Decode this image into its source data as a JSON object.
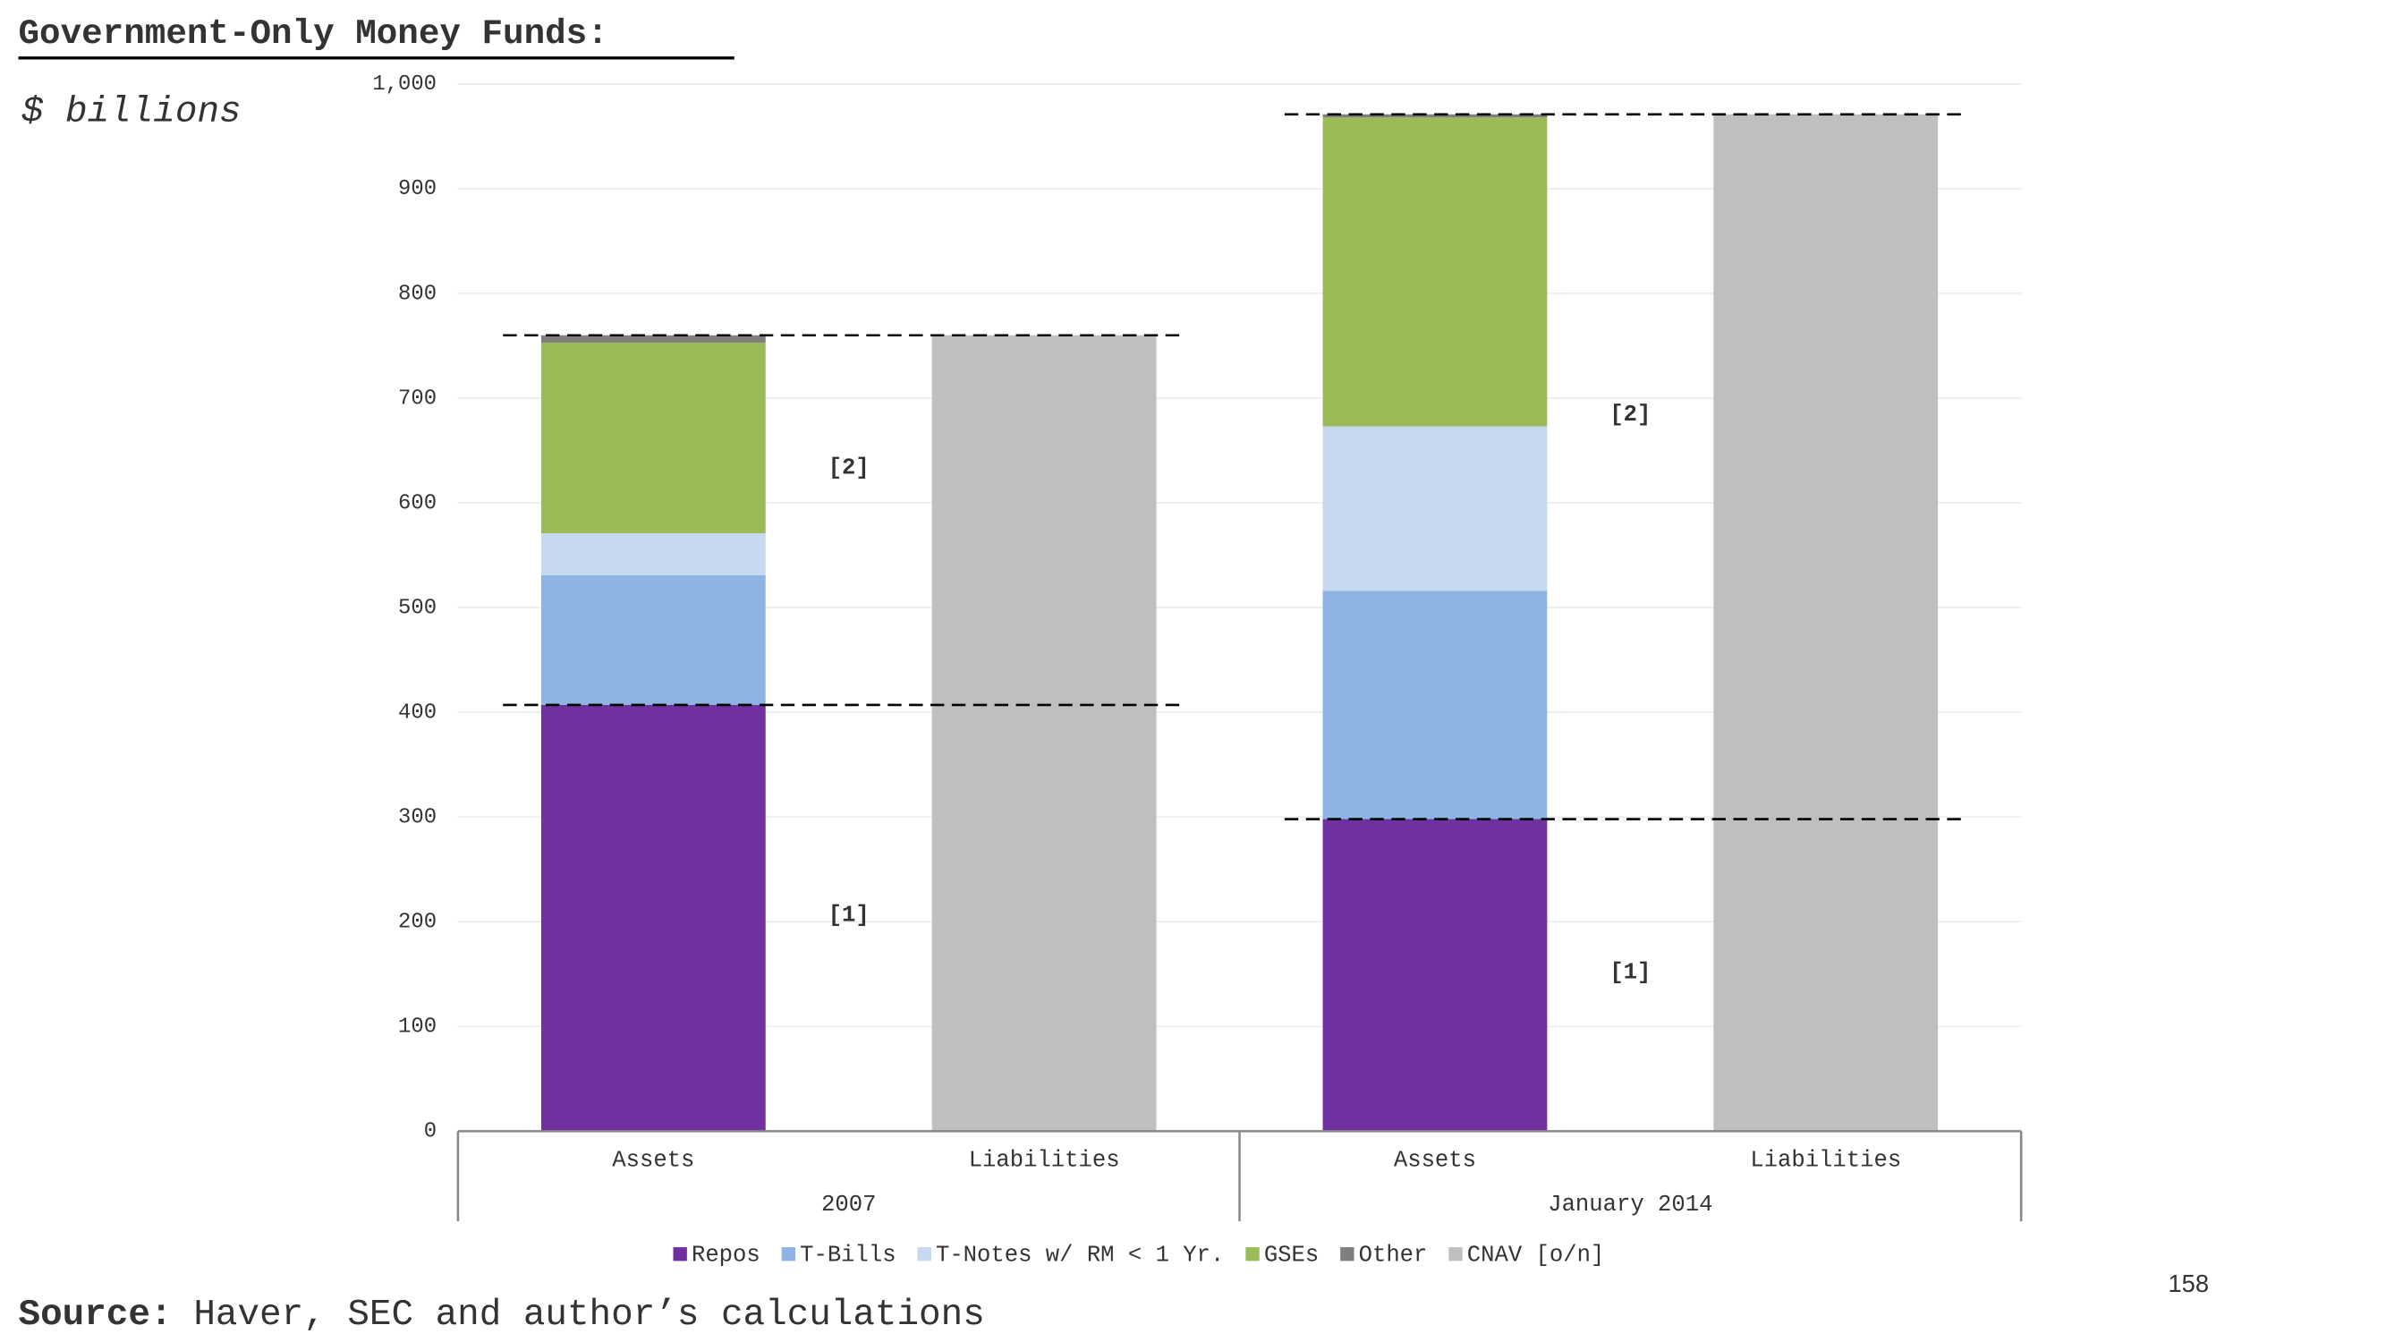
{
  "chart_data": {
    "type": "stacked_bar",
    "title": "Government-Only Money Funds:",
    "subtitle": "$ billions",
    "source_label": "Source:",
    "source": "Haver, SEC and author’s calculations",
    "page_number": "158",
    "groups": [
      "2007",
      "January 2014"
    ],
    "categories": [
      "Assets",
      "Liabilities",
      "Assets",
      "Liabilities"
    ],
    "series": [
      {
        "name": "Repos",
        "color": "#7030a0",
        "values": [
          407,
          null,
          298,
          null
        ]
      },
      {
        "name": "T-Bills",
        "color": "#8eb4e3",
        "values": [
          124,
          null,
          218,
          null
        ]
      },
      {
        "name": "T-Notes w/ RM < 1 Yr.",
        "color": "#c6d9f1",
        "values": [
          40,
          null,
          157,
          null
        ]
      },
      {
        "name": "GSEs",
        "color": "#9bbb59",
        "values": [
          182,
          null,
          295,
          null
        ]
      },
      {
        "name": "Other",
        "color": "#7f7f7f",
        "values": [
          7,
          null,
          3,
          null
        ]
      },
      {
        "name": "CNAV [o/n]",
        "color": "#bfbfbf",
        "values": [
          null,
          760,
          null,
          971
        ]
      }
    ],
    "annotations": [
      "[1]",
      "[2]",
      "[1]",
      "[2]"
    ],
    "ylim": [
      0,
      1000
    ],
    "yticks": [
      0,
      100,
      200,
      300,
      400,
      500,
      600,
      700,
      800,
      900,
      {
        "value": 1000,
        "label": "1,000"
      }
    ],
    "grid": true
  }
}
